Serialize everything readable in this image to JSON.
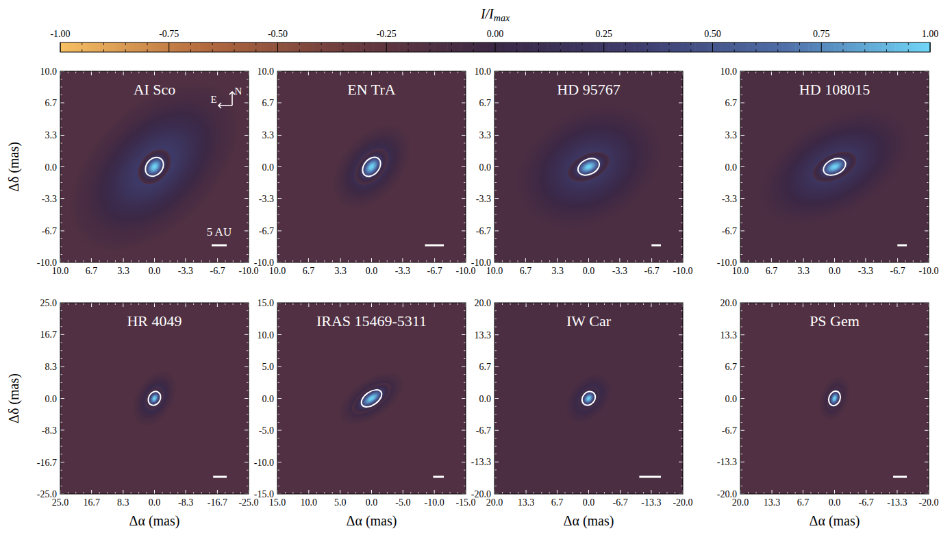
{
  "chart_data": {
    "type": "image",
    "colorbar": {
      "label": {
        "text": "I/I",
        "subscript": "max"
      },
      "range": [
        -1,
        1
      ],
      "ticks": [
        {
          "value": -1,
          "label": "-1.00"
        },
        {
          "value": -0.75,
          "label": "-0.75"
        },
        {
          "value": -0.5,
          "label": "-0.50"
        },
        {
          "value": -0.25,
          "label": "-0.25"
        },
        {
          "value": 0,
          "label": "0.00"
        },
        {
          "value": 0.25,
          "label": "0.25"
        },
        {
          "value": 0.5,
          "label": "0.50"
        },
        {
          "value": 0.75,
          "label": "0.75"
        },
        {
          "value": 1,
          "label": "1.00"
        }
      ],
      "colors": [
        "#f7c063",
        "#b36a3e",
        "#6a3a3e",
        "#3a2745",
        "#3e3d6e",
        "#4f6ea8",
        "#6fd6f7"
      ]
    },
    "x_label": "Δα (mas)",
    "y_label": "Δδ (mas)",
    "panels": [
      {
        "title": "AI Sco",
        "xlim": [
          10,
          -10
        ],
        "ylim": [
          -10,
          10
        ],
        "xticks": [
          {
            "value": 10,
            "label": "10.0"
          },
          6.7,
          3.3,
          {
            "value": 0,
            "label": "0.0"
          },
          -3.3,
          -6.7,
          {
            "value": -10,
            "label": "-10.0"
          }
        ],
        "yticks": [
          {
            "value": 10,
            "label": "10.0"
          },
          6.7,
          3.3,
          {
            "value": 0,
            "label": "0.0"
          },
          -3.3,
          -6.7,
          {
            "value": -10,
            "label": "-10.0"
          }
        ],
        "background": -0.15,
        "ring": {
          "a": 0.8,
          "b": 0.55,
          "pa": 140
        },
        "halo": {
          "a": 5.5,
          "b": 3.2,
          "pa": 135,
          "peak": 0.35
        },
        "scale_bar": {
          "length": 1.6,
          "label": "5 AU"
        },
        "compass": [
          "E",
          "N"
        ]
      },
      {
        "title": "EN TrA",
        "xlim": [
          10,
          -10
        ],
        "ylim": [
          -10,
          10
        ],
        "xticks": [
          {
            "value": 10,
            "label": "10.0"
          },
          6.7,
          3.3,
          {
            "value": 0,
            "label": "0.0"
          },
          -3.3,
          -6.7,
          {
            "value": -10,
            "label": "-10.0"
          }
        ],
        "yticks": [
          {
            "value": 10,
            "label": "10.0"
          },
          6.7,
          3.3,
          {
            "value": 0,
            "label": "0.0"
          },
          -3.3,
          -6.7,
          {
            "value": -10,
            "label": "-10.0"
          }
        ],
        "background": -0.15,
        "ring": {
          "a": 0.85,
          "b": 0.5,
          "pa": 140
        },
        "halo": {
          "a": 2.6,
          "b": 1.6,
          "pa": 140,
          "peak": 0.3
        },
        "scale_bar": {
          "length": 2.0
        }
      },
      {
        "title": "HD 95767",
        "xlim": [
          10,
          -10
        ],
        "ylim": [
          -10,
          10
        ],
        "xticks": [
          {
            "value": 10,
            "label": "10.0"
          },
          6.7,
          3.3,
          {
            "value": 0,
            "label": "0.0"
          },
          -3.3,
          -6.7,
          {
            "value": -10,
            "label": "-10.0"
          }
        ],
        "yticks": [
          {
            "value": 10,
            "label": "10.0"
          },
          6.7,
          3.3,
          {
            "value": 0,
            "label": "0.0"
          },
          -3.3,
          -6.7,
          {
            "value": -10,
            "label": "-10.0"
          }
        ],
        "background": -0.12,
        "ring": {
          "a": 0.9,
          "b": 0.5,
          "pa": 115
        },
        "halo": {
          "a": 4.2,
          "b": 3.0,
          "pa": 120,
          "peak": 0.3
        },
        "scale_bar": {
          "length": 1.0
        }
      },
      {
        "title": "HD 108015",
        "xlim": [
          10,
          -10
        ],
        "ylim": [
          -10,
          10
        ],
        "xticks": [
          {
            "value": 10,
            "label": "10.0"
          },
          6.7,
          3.3,
          {
            "value": 0,
            "label": "0.0"
          },
          -3.3,
          -6.7,
          {
            "value": -10,
            "label": "-10.0"
          }
        ],
        "yticks": [
          {
            "value": 10,
            "label": "10.0"
          },
          6.7,
          3.3,
          {
            "value": 0,
            "label": "0.0"
          },
          -3.3,
          -6.7,
          {
            "value": -10,
            "label": "-10.0"
          }
        ],
        "background": -0.12,
        "ring": {
          "a": 0.95,
          "b": 0.5,
          "pa": 115
        },
        "halo": {
          "a": 4.5,
          "b": 2.5,
          "pa": 120,
          "peak": 0.3
        },
        "scale_bar": {
          "length": 1.0
        }
      },
      {
        "title": "HR 4049",
        "xlim": [
          25,
          -25
        ],
        "ylim": [
          -25,
          25
        ],
        "xticks": [
          {
            "value": 25,
            "label": "25.0"
          },
          16.7,
          8.3,
          {
            "value": 0,
            "label": "0.0"
          },
          -8.3,
          -16.7,
          {
            "value": -25,
            "label": "-25.0"
          }
        ],
        "yticks": [
          {
            "value": 25,
            "label": "25.0"
          },
          16.7,
          8.3,
          {
            "value": 0,
            "label": "0.0"
          },
          -8.3,
          -16.7,
          {
            "value": -25,
            "label": "-25.0"
          }
        ],
        "background": -0.15,
        "ring": {
          "a": 1.2,
          "b": 0.8,
          "pa": 150
        },
        "halo": {
          "a": 4.0,
          "b": 2.5,
          "pa": 150,
          "peak": 0.25
        },
        "scale_bar": {
          "length": 3.6
        }
      },
      {
        "title": "IRAS 15469-5311",
        "xlim": [
          15,
          -15
        ],
        "ylim": [
          -15,
          15
        ],
        "xticks": [
          {
            "value": 15,
            "label": "15.0"
          },
          {
            "value": 10,
            "label": "10.0"
          },
          {
            "value": 5,
            "label": "5.0"
          },
          {
            "value": 0,
            "label": "0.0"
          },
          {
            "value": -5,
            "label": "-5.0"
          },
          {
            "value": -10,
            "label": "-10.0"
          },
          {
            "value": -15,
            "label": "-15.0"
          }
        ],
        "yticks": [
          {
            "value": 15,
            "label": "15.0"
          },
          {
            "value": 10,
            "label": "10.0"
          },
          {
            "value": 5,
            "label": "5.0"
          },
          {
            "value": 0,
            "label": "0.0"
          },
          {
            "value": -5,
            "label": "-5.0"
          },
          {
            "value": -10,
            "label": "-10.0"
          },
          {
            "value": -15,
            "label": "-15.0"
          }
        ],
        "background": -0.15,
        "ring": {
          "a": 1.4,
          "b": 0.6,
          "pa": 125
        },
        "halo": {
          "a": 3.0,
          "b": 1.5,
          "pa": 125,
          "peak": 0.3
        },
        "scale_bar": {
          "length": 1.7
        }
      },
      {
        "title": "IW Car",
        "xlim": [
          20,
          -20
        ],
        "ylim": [
          -20,
          20
        ],
        "xticks": [
          {
            "value": 20,
            "label": "20.0"
          },
          13.3,
          6.7,
          {
            "value": 0,
            "label": "0.0"
          },
          -6.7,
          -13.3,
          {
            "value": -20,
            "label": "-20.0"
          }
        ],
        "yticks": [
          {
            "value": 20,
            "label": "20.0"
          },
          13.3,
          6.7,
          {
            "value": 0,
            "label": "0.0"
          },
          -6.7,
          -13.3,
          {
            "value": -20,
            "label": "-20.0"
          }
        ],
        "background": -0.12,
        "ring": {
          "a": 1.0,
          "b": 0.7,
          "pa": 140
        },
        "halo": {
          "a": 3.0,
          "b": 2.0,
          "pa": 140,
          "peak": 0.25
        },
        "scale_bar": {
          "length": 4.6
        }
      },
      {
        "title": "PS Gem",
        "xlim": [
          20,
          -20
        ],
        "ylim": [
          -20,
          20
        ],
        "xticks": [
          {
            "value": 20,
            "label": "20.0"
          },
          13.3,
          6.7,
          {
            "value": 0,
            "label": "0.0"
          },
          -6.7,
          -13.3,
          {
            "value": -20,
            "label": "-20.0"
          }
        ],
        "yticks": [
          {
            "value": 20,
            "label": "20.0"
          },
          13.3,
          6.7,
          {
            "value": 0,
            "label": "0.0"
          },
          -6.7,
          -13.3,
          {
            "value": -20,
            "label": "-20.0"
          }
        ],
        "background": -0.15,
        "ring": {
          "a": 1.0,
          "b": 0.6,
          "pa": 160
        },
        "halo": {
          "a": 2.5,
          "b": 1.5,
          "pa": 160,
          "peak": 0.2
        },
        "scale_bar": {
          "length": 2.9
        }
      }
    ]
  }
}
